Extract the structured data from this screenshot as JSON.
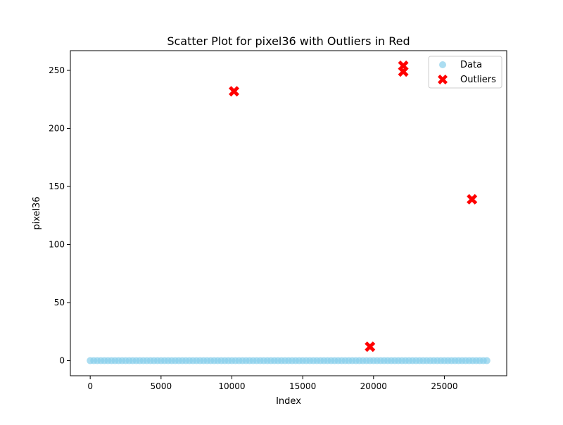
{
  "chart_data": {
    "type": "scatter",
    "title": "Scatter Plot for pixel36 with Outliers in Red",
    "xlabel": "Index",
    "ylabel": "pixel36",
    "xlim": [
      -1400,
      29400
    ],
    "ylim": [
      -13,
      267
    ],
    "xticks": [
      0,
      5000,
      10000,
      15000,
      20000,
      25000
    ],
    "yticks": [
      0,
      50,
      100,
      150,
      200,
      250
    ],
    "grid": false,
    "legend": {
      "placement": "top-right",
      "entries": [
        {
          "label": "Data",
          "marker": "circle",
          "color": "#87CEEB"
        },
        {
          "label": "Outliers",
          "marker": "X",
          "color": "#FF0000"
        }
      ]
    },
    "series": [
      {
        "name": "Data",
        "marker": "circle",
        "color": "#87CEEB",
        "opacity": 0.7,
        "x_range": [
          0,
          28000
        ],
        "x_step": 250,
        "y_constant": 0
      },
      {
        "name": "Outliers",
        "marker": "X",
        "color": "#FF0000",
        "points": [
          {
            "x": 10150,
            "y": 232
          },
          {
            "x": 19750,
            "y": 12
          },
          {
            "x": 22100,
            "y": 249
          },
          {
            "x": 22100,
            "y": 254
          },
          {
            "x": 26950,
            "y": 139
          }
        ]
      }
    ]
  }
}
